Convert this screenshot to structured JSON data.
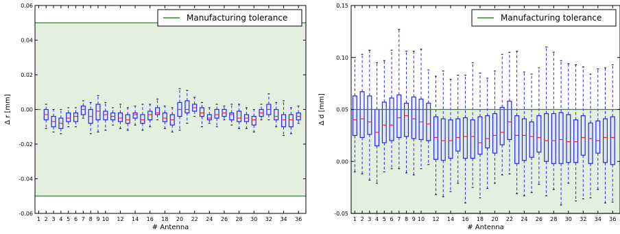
{
  "colors": {
    "tolerance": "#2a8a2a",
    "band": "#e3f0e0",
    "box": "#2222ff",
    "median": "#ff2222",
    "fill": "#dde4f5"
  },
  "chart_data": [
    {
      "type": "boxplot",
      "xlabel": "# Antenna",
      "ylabel": "Δ r [mm]",
      "ylim": [
        -0.06,
        0.06
      ],
      "yticks": [
        "-0.06",
        "-0.04",
        "-0.02",
        "0.00",
        "0.02",
        "0.04",
        "0.06"
      ],
      "xticks": [
        "1",
        "2",
        "3",
        "4",
        "5",
        "6",
        "7",
        "8",
        "9",
        "10",
        "12",
        "14",
        "16",
        "18",
        "20",
        "22",
        "24",
        "26",
        "28",
        "30",
        "32",
        "34",
        "36"
      ],
      "tolerance": [
        -0.05,
        0.05
      ],
      "legend": "Manufacturing tolerance",
      "legend_position": "top-right",
      "categories": [
        1,
        2,
        3,
        4,
        5,
        6,
        7,
        8,
        9,
        10,
        11,
        12,
        13,
        14,
        15,
        16,
        17,
        18,
        19,
        20,
        21,
        22,
        23,
        24,
        25,
        26,
        27,
        28,
        29,
        30,
        31,
        32,
        33,
        34,
        35,
        36
      ],
      "boxes": [
        {
          "min": 0.0,
          "q1": 0.0,
          "median": 0.0,
          "q3": 0.0,
          "max": 0.0
        },
        {
          "min": -0.011,
          "q1": -0.006,
          "median": -0.003,
          "q3": 0.0,
          "max": 0.003
        },
        {
          "min": -0.013,
          "q1": -0.01,
          "median": -0.007,
          "q3": -0.004,
          "max": 0.0
        },
        {
          "min": -0.014,
          "q1": -0.011,
          "median": -0.008,
          "q3": -0.005,
          "max": 0.0
        },
        {
          "min": -0.01,
          "q1": -0.007,
          "median": -0.005,
          "q3": -0.002,
          "max": 0.001
        },
        {
          "min": -0.01,
          "q1": -0.007,
          "median": -0.004,
          "q3": -0.002,
          "max": 0.001
        },
        {
          "min": -0.005,
          "q1": -0.003,
          "median": 0.0,
          "q3": 0.002,
          "max": 0.005
        },
        {
          "min": -0.014,
          "q1": -0.008,
          "median": -0.004,
          "q3": 0.0,
          "max": 0.004
        },
        {
          "min": -0.013,
          "q1": -0.006,
          "median": -0.001,
          "q3": 0.003,
          "max": 0.008
        },
        {
          "min": -0.012,
          "q1": -0.006,
          "median": -0.003,
          "q3": -0.001,
          "max": 0.004
        },
        {
          "min": -0.009,
          "q1": -0.006,
          "median": -0.004,
          "q3": -0.002,
          "max": 0.001
        },
        {
          "min": -0.011,
          "q1": -0.007,
          "median": -0.005,
          "q3": -0.002,
          "max": 0.003
        },
        {
          "min": -0.012,
          "q1": -0.008,
          "median": -0.006,
          "q3": -0.003,
          "max": 0.001
        },
        {
          "min": -0.009,
          "q1": -0.005,
          "median": -0.003,
          "q3": -0.002,
          "max": 0.002
        },
        {
          "min": -0.012,
          "q1": -0.008,
          "median": -0.006,
          "q3": -0.003,
          "max": 0.003
        },
        {
          "min": -0.01,
          "q1": -0.006,
          "median": -0.003,
          "q3": -0.001,
          "max": 0.003
        },
        {
          "min": -0.006,
          "q1": -0.003,
          "median": -0.002,
          "q3": 0.001,
          "max": 0.006
        },
        {
          "min": -0.011,
          "q1": -0.007,
          "median": -0.005,
          "q3": -0.002,
          "max": 0.002
        },
        {
          "min": -0.013,
          "q1": -0.009,
          "median": -0.006,
          "q3": -0.003,
          "max": 0.001
        },
        {
          "min": -0.012,
          "q1": -0.004,
          "median": 0.0,
          "q3": 0.004,
          "max": 0.012
        },
        {
          "min": -0.008,
          "q1": -0.002,
          "median": 0.0,
          "q3": 0.005,
          "max": 0.011
        },
        {
          "min": -0.004,
          "q1": -0.001,
          "median": 0.001,
          "q3": 0.003,
          "max": 0.007
        },
        {
          "min": -0.01,
          "q1": -0.004,
          "median": -0.002,
          "q3": 0.001,
          "max": 0.004
        },
        {
          "min": -0.008,
          "q1": -0.006,
          "median": -0.005,
          "q3": -0.003,
          "max": 0.001
        },
        {
          "min": -0.01,
          "q1": -0.005,
          "median": -0.003,
          "q3": 0.0,
          "max": 0.003
        },
        {
          "min": -0.006,
          "q1": -0.004,
          "median": -0.002,
          "q3": 0.0,
          "max": 0.002
        },
        {
          "min": -0.009,
          "q1": -0.006,
          "median": -0.003,
          "q3": -0.002,
          "max": 0.003
        },
        {
          "min": -0.011,
          "q1": -0.007,
          "median": -0.005,
          "q3": -0.001,
          "max": 0.003
        },
        {
          "min": -0.011,
          "q1": -0.007,
          "median": -0.005,
          "q3": -0.003,
          "max": 0.001
        },
        {
          "min": -0.013,
          "q1": -0.009,
          "median": -0.006,
          "q3": -0.004,
          "max": 0.0
        },
        {
          "min": -0.006,
          "q1": -0.004,
          "median": -0.002,
          "q3": 0.0,
          "max": 0.003
        },
        {
          "min": -0.006,
          "q1": -0.003,
          "median": 0.0,
          "q3": 0.003,
          "max": 0.009
        },
        {
          "min": -0.01,
          "q1": -0.006,
          "median": -0.004,
          "q3": 0.0,
          "max": 0.004
        },
        {
          "min": -0.015,
          "q1": -0.01,
          "median": -0.006,
          "q3": -0.003,
          "max": 0.005
        },
        {
          "min": -0.014,
          "q1": -0.01,
          "median": -0.006,
          "q3": -0.003,
          "max": 0.001
        },
        {
          "min": -0.008,
          "q1": -0.006,
          "median": -0.004,
          "q3": -0.002,
          "max": 0.002
        }
      ]
    },
    {
      "type": "boxplot",
      "xlabel": "# Antenna",
      "ylabel": "Δ d [mm]",
      "ylim": [
        -0.05,
        0.15
      ],
      "yticks": [
        "-0.05",
        "0.00",
        "0.05",
        "0.10",
        "0.15"
      ],
      "xticks": [
        "1",
        "2",
        "3",
        "4",
        "5",
        "6",
        "7",
        "8",
        "9",
        "10",
        "12",
        "14",
        "16",
        "18",
        "20",
        "22",
        "24",
        "26",
        "28",
        "30",
        "32",
        "34",
        "36"
      ],
      "tolerance": [
        -0.05,
        0.05
      ],
      "legend": "Manufacturing tolerance",
      "legend_position": "top-right",
      "categories": [
        1,
        2,
        3,
        4,
        5,
        6,
        7,
        8,
        9,
        10,
        11,
        12,
        13,
        14,
        15,
        16,
        17,
        18,
        19,
        20,
        21,
        22,
        23,
        24,
        25,
        26,
        27,
        28,
        29,
        30,
        31,
        32,
        33,
        34,
        35,
        36
      ],
      "boxes": [
        {
          "min": -0.01,
          "q1": 0.025,
          "median": 0.04,
          "q3": 0.063,
          "max": 0.1
        },
        {
          "min": -0.012,
          "q1": 0.023,
          "median": 0.041,
          "q3": 0.067,
          "max": 0.103
        },
        {
          "min": -0.018,
          "q1": 0.026,
          "median": 0.038,
          "q3": 0.063,
          "max": 0.107
        },
        {
          "min": -0.021,
          "q1": 0.015,
          "median": 0.028,
          "q3": 0.05,
          "max": 0.095
        },
        {
          "min": -0.01,
          "q1": 0.018,
          "median": 0.035,
          "q3": 0.057,
          "max": 0.097
        },
        {
          "min": -0.007,
          "q1": 0.02,
          "median": 0.035,
          "q3": 0.061,
          "max": 0.107
        },
        {
          "min": -0.007,
          "q1": 0.023,
          "median": 0.042,
          "q3": 0.064,
          "max": 0.127
        },
        {
          "min": -0.011,
          "q1": 0.024,
          "median": 0.044,
          "q3": 0.056,
          "max": 0.106
        },
        {
          "min": -0.013,
          "q1": 0.022,
          "median": 0.041,
          "q3": 0.062,
          "max": 0.106
        },
        {
          "min": -0.007,
          "q1": 0.021,
          "median": 0.038,
          "q3": 0.06,
          "max": 0.108
        },
        {
          "min": -0.003,
          "q1": 0.02,
          "median": 0.036,
          "q3": 0.056,
          "max": 0.088
        },
        {
          "min": -0.032,
          "q1": 0.002,
          "median": 0.023,
          "q3": 0.043,
          "max": 0.082
        },
        {
          "min": -0.034,
          "q1": 0.001,
          "median": 0.02,
          "q3": 0.041,
          "max": 0.087
        },
        {
          "min": -0.029,
          "q1": 0.003,
          "median": 0.02,
          "q3": 0.04,
          "max": 0.079
        },
        {
          "min": -0.021,
          "q1": 0.01,
          "median": 0.023,
          "q3": 0.041,
          "max": 0.083
        },
        {
          "min": -0.04,
          "q1": 0.003,
          "median": 0.024,
          "q3": 0.042,
          "max": 0.083
        },
        {
          "min": -0.025,
          "q1": 0.003,
          "median": 0.024,
          "q3": 0.04,
          "max": 0.095
        },
        {
          "min": -0.035,
          "q1": 0.007,
          "median": 0.018,
          "q3": 0.043,
          "max": 0.085
        },
        {
          "min": -0.026,
          "q1": 0.013,
          "median": 0.022,
          "q3": 0.044,
          "max": 0.08
        },
        {
          "min": -0.021,
          "q1": 0.008,
          "median": 0.025,
          "q3": 0.046,
          "max": 0.087
        },
        {
          "min": -0.013,
          "q1": 0.016,
          "median": 0.028,
          "q3": 0.052,
          "max": 0.103
        },
        {
          "min": -0.012,
          "q1": 0.021,
          "median": 0.038,
          "q3": 0.058,
          "max": 0.105
        },
        {
          "min": -0.031,
          "q1": -0.002,
          "median": 0.025,
          "q3": 0.044,
          "max": 0.106
        },
        {
          "min": -0.033,
          "q1": 0.001,
          "median": 0.025,
          "q3": 0.041,
          "max": 0.086
        },
        {
          "min": -0.03,
          "q1": 0.004,
          "median": 0.024,
          "q3": 0.038,
          "max": 0.084
        },
        {
          "min": -0.022,
          "q1": 0.009,
          "median": 0.023,
          "q3": 0.044,
          "max": 0.09
        },
        {
          "min": -0.033,
          "q1": 0.0,
          "median": 0.02,
          "q3": 0.046,
          "max": 0.11
        },
        {
          "min": -0.027,
          "q1": -0.002,
          "median": 0.02,
          "q3": 0.046,
          "max": 0.105
        },
        {
          "min": -0.042,
          "q1": -0.002,
          "median": 0.021,
          "q3": 0.047,
          "max": 0.097
        },
        {
          "min": -0.021,
          "q1": -0.001,
          "median": 0.019,
          "q3": 0.045,
          "max": 0.094
        },
        {
          "min": -0.038,
          "q1": -0.001,
          "median": 0.019,
          "q3": 0.04,
          "max": 0.093
        },
        {
          "min": -0.036,
          "q1": 0.006,
          "median": 0.023,
          "q3": 0.044,
          "max": 0.091
        },
        {
          "min": -0.035,
          "q1": -0.002,
          "median": 0.022,
          "q3": 0.037,
          "max": 0.084
        },
        {
          "min": -0.027,
          "q1": 0.008,
          "median": 0.02,
          "q3": 0.039,
          "max": 0.089
        },
        {
          "min": -0.04,
          "q1": -0.001,
          "median": 0.023,
          "q3": 0.041,
          "max": 0.09
        },
        {
          "min": -0.039,
          "q1": -0.003,
          "median": 0.023,
          "q3": 0.043,
          "max": 0.093
        }
      ]
    }
  ]
}
